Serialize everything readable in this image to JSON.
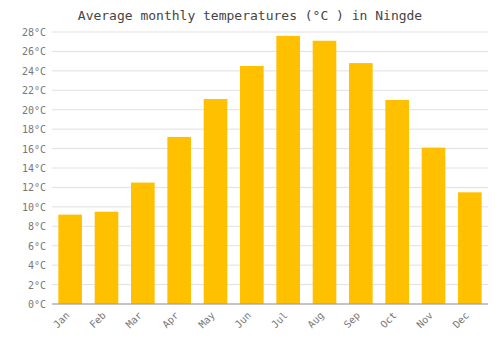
{
  "chart_data": {
    "type": "bar",
    "title": "Average monthly temperatures (°C ) in Ningde",
    "categories": [
      "Jan",
      "Feb",
      "Mar",
      "Apr",
      "May",
      "Jun",
      "Jul",
      "Aug",
      "Sep",
      "Oct",
      "Nov",
      "Dec"
    ],
    "values": [
      9.2,
      9.5,
      12.5,
      17.2,
      21.1,
      24.5,
      27.6,
      27.1,
      24.8,
      21.0,
      16.1,
      11.5
    ],
    "color": "#FFC000",
    "ylim": [
      0,
      28
    ],
    "yticks": [
      {
        "value": 0,
        "label": "0°C"
      },
      {
        "value": 2,
        "label": "2°C"
      },
      {
        "value": 4,
        "label": "4°C"
      },
      {
        "value": 6,
        "label": "6°C"
      },
      {
        "value": 8,
        "label": "8°C"
      },
      {
        "value": 10,
        "label": "10°C"
      },
      {
        "value": 12,
        "label": "12°C"
      },
      {
        "value": 14,
        "label": "14°C"
      },
      {
        "value": 16,
        "label": "16°C"
      },
      {
        "value": 18,
        "label": "18°C"
      },
      {
        "value": 20,
        "label": "20°C"
      },
      {
        "value": 22,
        "label": "22°C"
      },
      {
        "value": 24,
        "label": "24°C"
      },
      {
        "value": 26,
        "label": "26°C"
      },
      {
        "value": 28,
        "label": "28°C"
      }
    ],
    "grid": true
  }
}
